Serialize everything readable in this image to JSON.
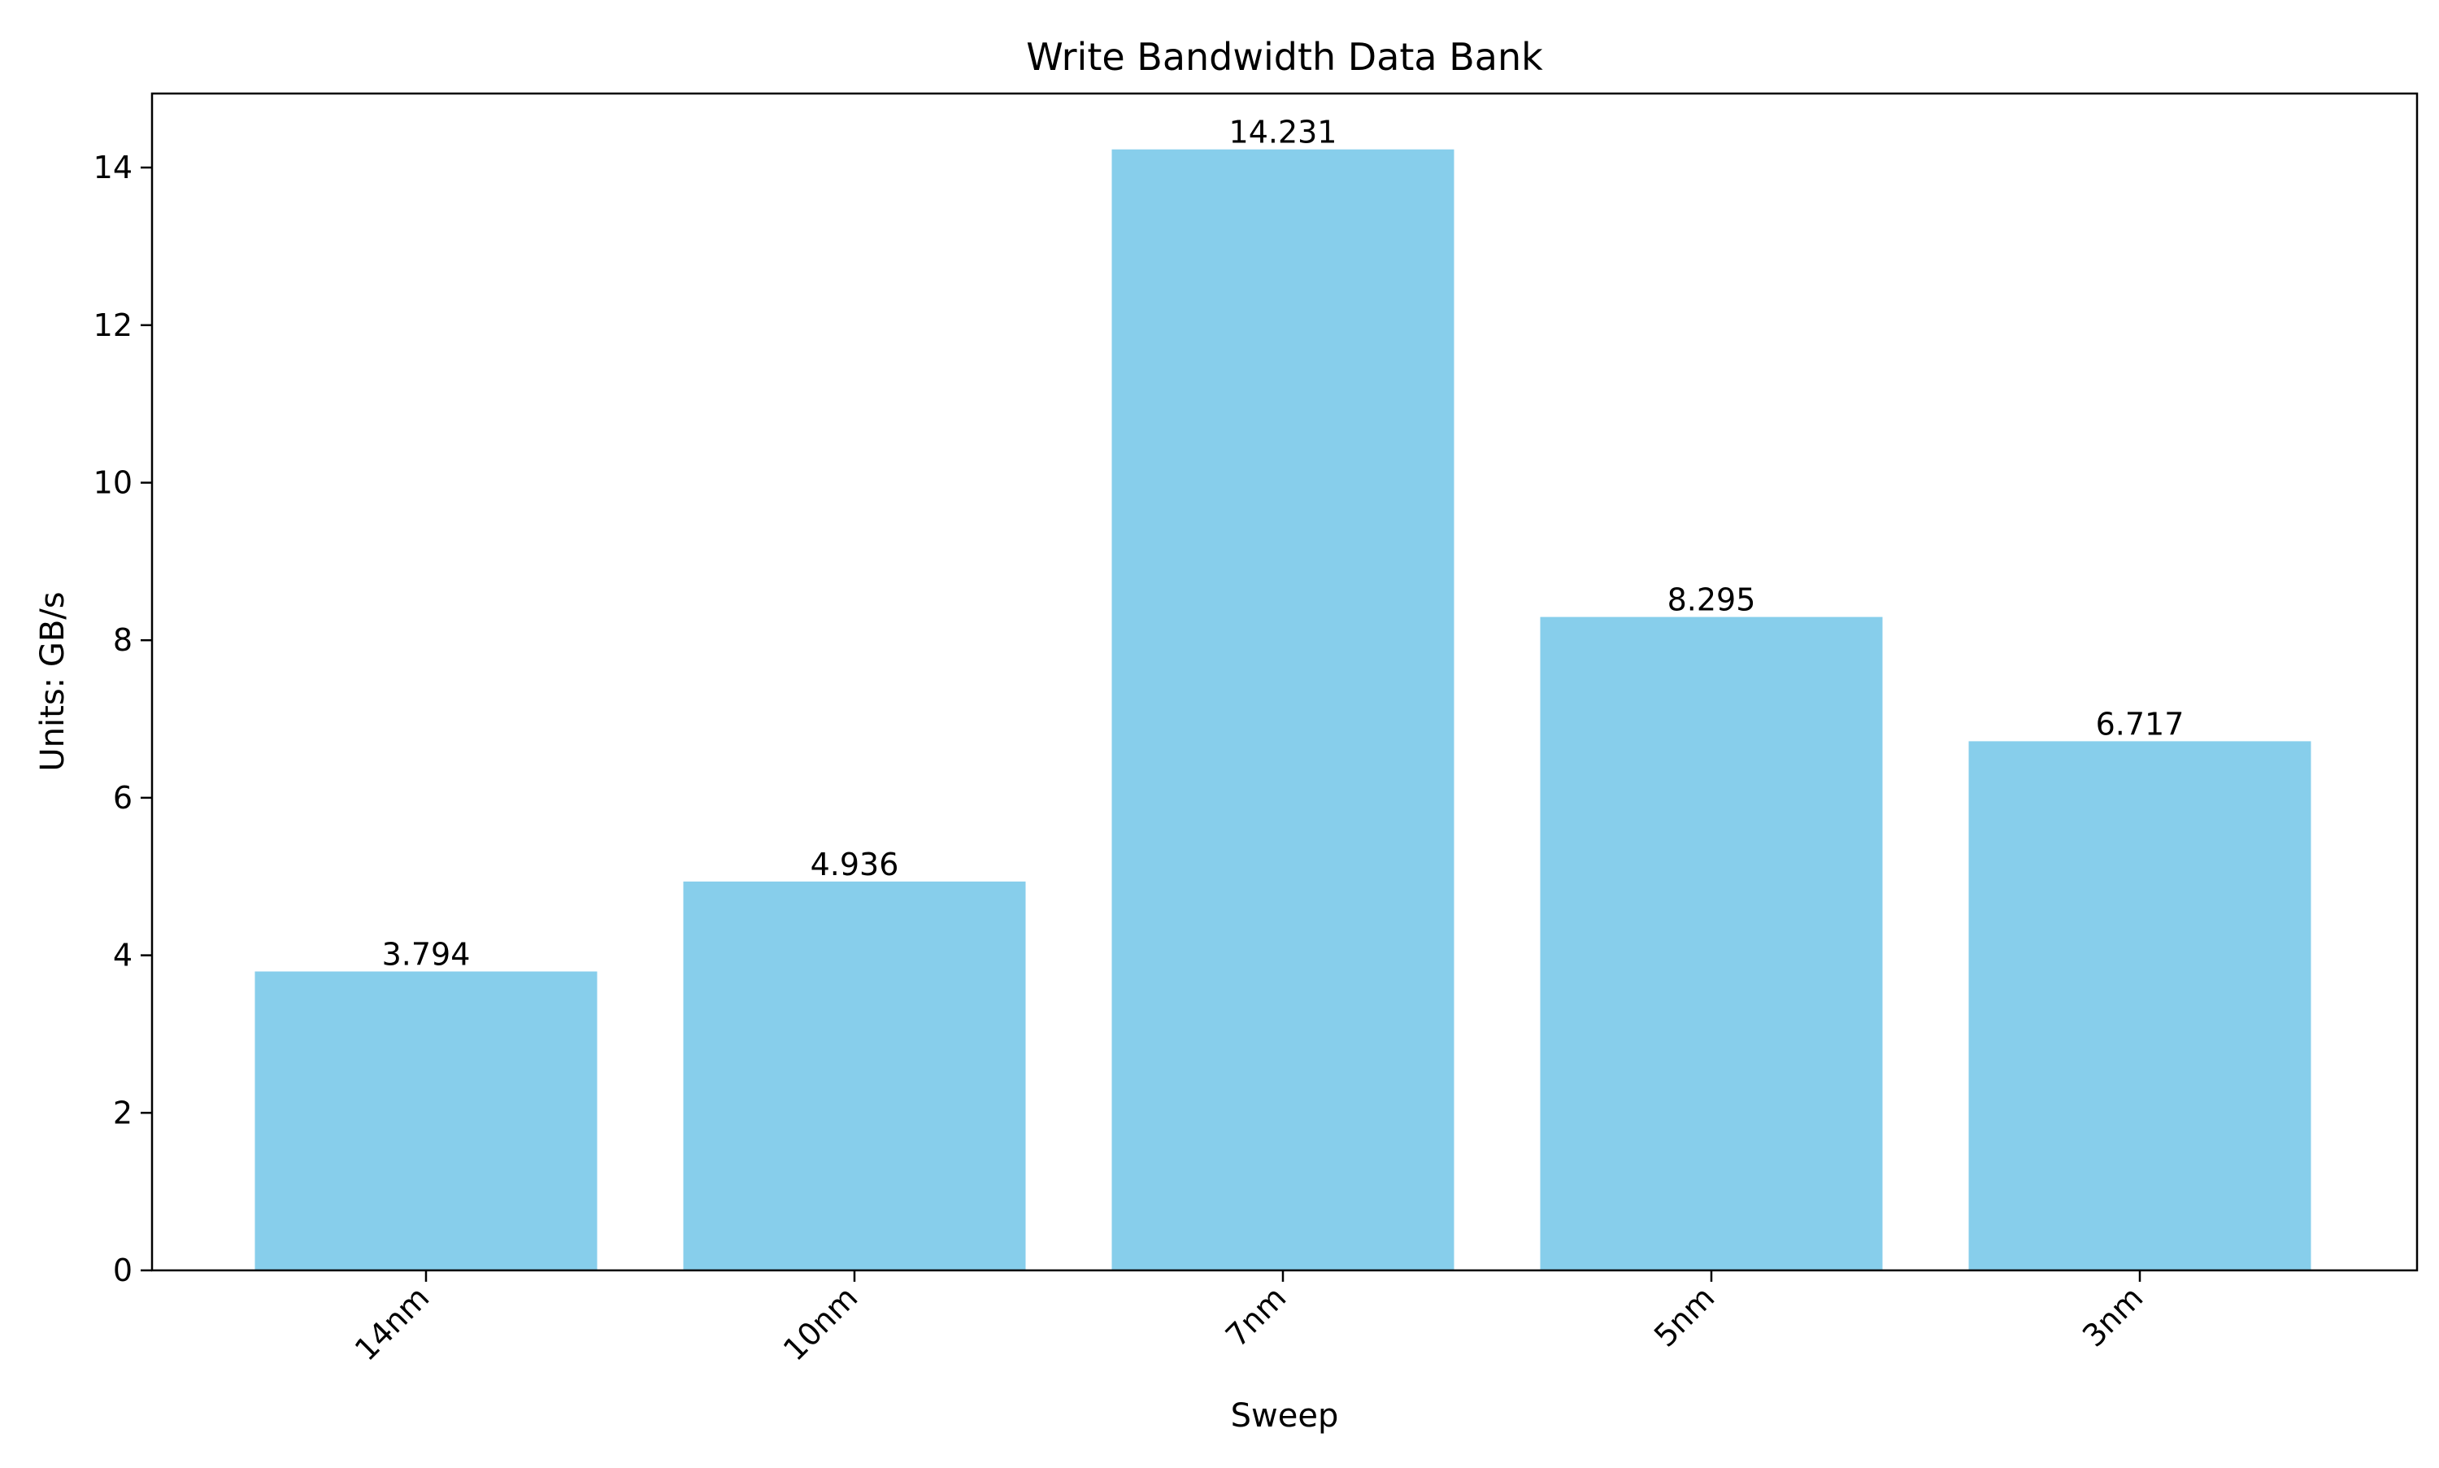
{
  "chart_data": {
    "type": "bar",
    "title": "Write Bandwidth Data Bank",
    "xlabel": "Sweep",
    "ylabel": "Units: GB/s",
    "categories": [
      "14nm",
      "10nm",
      "7nm",
      "5nm",
      "3nm"
    ],
    "values": [
      3.794,
      4.936,
      14.231,
      8.295,
      6.717
    ],
    "value_labels": [
      "3.794",
      "4.936",
      "14.231",
      "8.295",
      "6.717"
    ],
    "ylim": [
      0,
      14.94
    ],
    "yticks": [
      0,
      2,
      4,
      6,
      8,
      10,
      12,
      14
    ],
    "ytick_labels": [
      "0",
      "2",
      "4",
      "6",
      "8",
      "10",
      "12",
      "14"
    ],
    "bar_color": "#87CEEB",
    "grid": false,
    "legend": "none",
    "x_tick_rotation": "45"
  }
}
